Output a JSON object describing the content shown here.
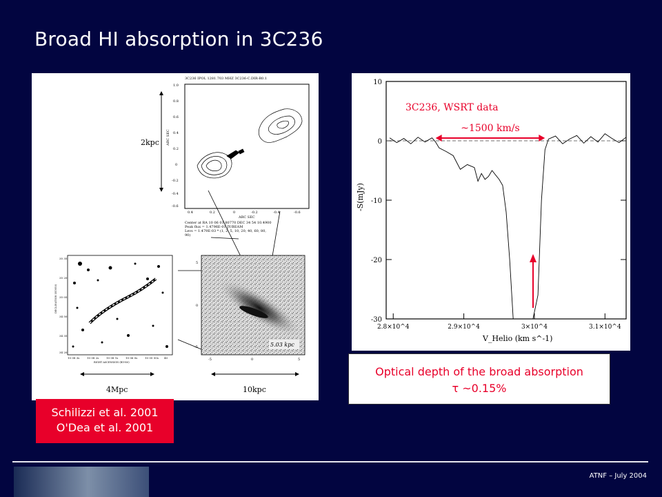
{
  "title": "Broad HI absorption in 3C236",
  "left_figure": {
    "header_line": "3C236 IPOL 1281.703 MHZ 3C236-C.DIR-R0.1",
    "y_axis_label": "ARC SEC",
    "x_axis_label": "ARC SEC",
    "y_ticks": [
      "1.0",
      "0.8",
      "0.6",
      "0.4",
      "0.2",
      "0",
      "-0.2",
      "-0.4",
      "-0.6"
    ],
    "x_ticks": [
      "0.4",
      "0.2",
      "0",
      "-0.2",
      "-0.4",
      "-0.6"
    ],
    "scale_2kpc": "2kpc",
    "info_lines": [
      "Center at RA 10 06 01.80770  DEC 34 54 10.4900",
      "Peak flux = 1.4796E-01 JY/BEAM",
      "Levs = 1.479E-03 * (1, 2, 5, 10, 20, 40, 60, 80,",
      "90)"
    ],
    "scale_4mpc": "4Mpc",
    "scale_10kpc": "10kpc",
    "inset_label": "5.03 kpc",
    "wide_x_ticks": [
      "10 08 3s",
      "10 08 2s",
      "10 08 1s",
      "10 06 0s",
      "10 05 50s",
      "40"
    ],
    "wide_y_ticks": [
      "35 35",
      "35 20",
      "35 05",
      "34 50",
      "34 35",
      "34 20"
    ],
    "zoom_y_ticks": [
      "5",
      "0",
      "-5"
    ],
    "zoom_x_ticks": [
      "-5",
      "0",
      "5"
    ],
    "wide_axis_x": "RIGHT ASCENSION (B1950)",
    "wide_axis_y": "DECLINATION (B1950)"
  },
  "references": [
    "Schilizzi et al. 2001",
    "O'Dea et al. 2001"
  ],
  "chart_data": {
    "type": "line",
    "title": "3C236, WSRT data",
    "xlabel": "V_Helio (km s^-1)",
    "ylabel": "-S(mJy)",
    "xlim": [
      27900,
      31300
    ],
    "ylim": [
      -30,
      10
    ],
    "x_tick_labels": [
      "2.8×10^4",
      "2.9×10^4",
      "3×10^4",
      "3.1×10^4"
    ],
    "x_ticks": [
      28000,
      29000,
      30000,
      31000
    ],
    "y_ticks": [
      10,
      0,
      -10,
      -20,
      -30
    ],
    "baseline": 0,
    "width_annotation": "~1500 km/s",
    "series": [
      {
        "x": [
          27950,
          28050,
          28150,
          28250,
          28350,
          28450,
          28550,
          28600,
          28650,
          28750,
          28850,
          28950,
          29050,
          29150,
          29200,
          29250,
          29300,
          29350,
          29400,
          29500,
          29550,
          29600,
          29650,
          29700,
          29750,
          29800,
          29850,
          29900,
          29950,
          29980,
          30050,
          30100,
          30150,
          30200,
          30300,
          30400,
          30500,
          30600,
          30700,
          30800,
          30900,
          31000,
          31100,
          31200,
          31300
        ],
        "y": [
          0.5,
          -0.3,
          0.4,
          -0.5,
          0.6,
          -0.2,
          0.5,
          -0.2,
          -1.2,
          -1.8,
          -2.5,
          -4.8,
          -4.0,
          -4.5,
          -6.8,
          -5.5,
          -6.5,
          -6.0,
          -5.0,
          -6.5,
          -7.5,
          -12,
          -20,
          -30,
          -30,
          -30,
          -30,
          -30,
          -30,
          -30,
          -26,
          -10,
          -1.5,
          0.3,
          0.8,
          -0.5,
          0.3,
          0.9,
          -0.4,
          0.7,
          -0.2,
          1.2,
          0.4,
          -0.3,
          0.6
        ]
      }
    ]
  },
  "optical_depth": {
    "line1": "Optical depth  of the broad absorption",
    "line2": "τ ~0.15%"
  },
  "footer": "ATNF – July 2004",
  "colors": {
    "background": "#020540",
    "accent": "#e8002a"
  }
}
